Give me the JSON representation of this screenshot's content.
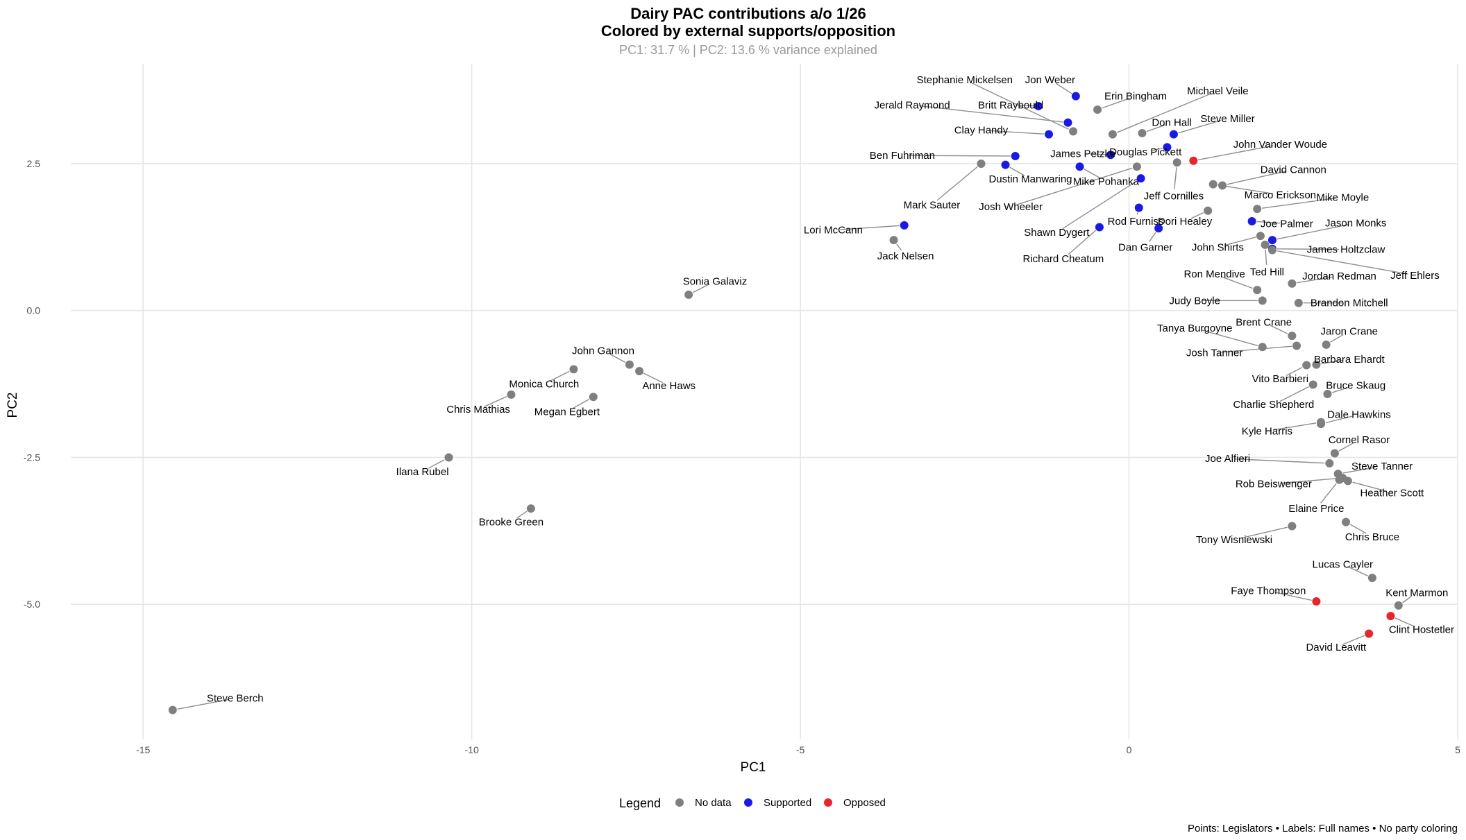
{
  "chart_data": {
    "type": "scatter",
    "title": "Dairy PAC contributions a/o 1/26",
    "subtitle": "Colored by external supports/opposition",
    "variance_note": "PC1: 31.7 % | PC2: 13.6 % variance explained",
    "xlabel": "PC1",
    "ylabel": "PC2",
    "xlim": [
      -16.1,
      5.0
    ],
    "ylim": [
      -7.3,
      4.2
    ],
    "x_ticks": [
      -15,
      -10,
      -5,
      0,
      5
    ],
    "x_tick_labels": [
      "-15",
      "-10",
      "-5",
      "0",
      "5"
    ],
    "y_ticks": [
      -5.0,
      -2.5,
      0.0,
      2.5
    ],
    "y_tick_labels": [
      "-5.0",
      "-2.5",
      "0.0",
      "2.5"
    ],
    "legend": {
      "title": "Legend",
      "placement": "bottom",
      "entries": [
        {
          "key": "none",
          "label": "No data",
          "color": "#7f7f7f"
        },
        {
          "key": "supported",
          "label": "Supported",
          "color": "#1a1ae6"
        },
        {
          "key": "opposed",
          "label": "Opposed",
          "color": "#e6262e"
        }
      ]
    },
    "caption": "Points: Legislators • Labels: Full names • No party coloring",
    "points": [
      {
        "name": "Steve Berch",
        "x": -14.55,
        "y": -6.8,
        "group": "none",
        "lx": -13.6,
        "ly": -6.6
      },
      {
        "name": "Ilana Rubel",
        "x": -10.35,
        "y": -2.5,
        "group": "none",
        "lx": -10.75,
        "ly": -2.74
      },
      {
        "name": "Brooke Green",
        "x": -9.1,
        "y": -3.37,
        "group": "none",
        "lx": -9.4,
        "ly": -3.6
      },
      {
        "name": "Chris Mathias",
        "x": -9.4,
        "y": -1.43,
        "group": "none",
        "lx": -9.9,
        "ly": -1.68
      },
      {
        "name": "Monica Church",
        "x": -8.45,
        "y": -1.0,
        "group": "none",
        "lx": -8.9,
        "ly": -1.25
      },
      {
        "name": "Megan Egbert",
        "x": -8.15,
        "y": -1.47,
        "group": "none",
        "lx": -8.55,
        "ly": -1.72
      },
      {
        "name": "John Gannon",
        "x": -7.6,
        "y": -0.92,
        "group": "none",
        "lx": -8.0,
        "ly": -0.68
      },
      {
        "name": "Anne Haws",
        "x": -7.45,
        "y": -1.03,
        "group": "none",
        "lx": -7.0,
        "ly": -1.28
      },
      {
        "name": "Sonia Galaviz",
        "x": -6.7,
        "y": 0.27,
        "group": "none",
        "lx": -6.3,
        "ly": 0.5
      },
      {
        "name": "Lori McCann",
        "x": -3.42,
        "y": 1.45,
        "group": "supported",
        "lx": -4.5,
        "ly": 1.37
      },
      {
        "name": "Jack Nelsen",
        "x": -3.58,
        "y": 1.2,
        "group": "none",
        "lx": -3.4,
        "ly": 0.93
      },
      {
        "name": "Mark Sauter",
        "x": -2.25,
        "y": 2.5,
        "group": "none",
        "lx": -3.0,
        "ly": 1.8
      },
      {
        "name": "Dustin Manwaring",
        "x": -1.88,
        "y": 2.48,
        "group": "supported",
        "lx": -1.5,
        "ly": 2.24
      },
      {
        "name": "Ben Fuhriman",
        "x": -1.73,
        "y": 2.63,
        "group": "supported",
        "lx": -3.45,
        "ly": 2.64
      },
      {
        "name": "Clay Handy",
        "x": -1.22,
        "y": 3.0,
        "group": "supported",
        "lx": -2.25,
        "ly": 3.07
      },
      {
        "name": "Jerald Raymond",
        "x": -0.93,
        "y": 3.2,
        "group": "supported",
        "lx": -3.3,
        "ly": 3.5
      },
      {
        "name": "Britt Raybould",
        "x": -1.38,
        "y": 3.48,
        "group": "supported",
        "lx": -1.8,
        "ly": 3.5
      },
      {
        "name": "Stephanie Mickelsen",
        "x": -0.85,
        "y": 3.05,
        "group": "none",
        "lx": -2.5,
        "ly": 3.93
      },
      {
        "name": "Jon Weber",
        "x": -0.81,
        "y": 3.65,
        "group": "supported",
        "lx": -1.2,
        "ly": 3.93
      },
      {
        "name": "Erin Bingham",
        "x": -0.48,
        "y": 3.42,
        "group": "none",
        "lx": 0.1,
        "ly": 3.65
      },
      {
        "name": "Michael Veile",
        "x": -0.25,
        "y": 3.0,
        "group": "none",
        "lx": 1.35,
        "ly": 3.74
      },
      {
        "name": "Don Hall",
        "x": 0.2,
        "y": 3.02,
        "group": "none",
        "lx": 0.65,
        "ly": 3.2
      },
      {
        "name": "Steve Miller",
        "x": 0.68,
        "y": 3.0,
        "group": "supported",
        "lx": 1.5,
        "ly": 3.27
      },
      {
        "name": "James Petzke",
        "x": -0.28,
        "y": 2.65,
        "group": "supported",
        "lx": -0.7,
        "ly": 2.67
      },
      {
        "name": "Douglas Pickett",
        "x": 0.58,
        "y": 2.78,
        "group": "supported",
        "lx": 0.25,
        "ly": 2.7
      },
      {
        "name": "John Vander Woude",
        "x": 0.98,
        "y": 2.55,
        "group": "opposed",
        "lx": 2.3,
        "ly": 2.83
      },
      {
        "name": "Mike Pohanka",
        "x": -0.75,
        "y": 2.45,
        "group": "supported",
        "lx": -0.35,
        "ly": 2.2
      },
      {
        "name": "Josh Wheeler",
        "x": 0.12,
        "y": 2.45,
        "group": "none",
        "lx": -1.8,
        "ly": 1.77
      },
      {
        "name": "Jeff Cornilles",
        "x": 0.73,
        "y": 2.52,
        "group": "none",
        "lx": 0.68,
        "ly": 1.95
      },
      {
        "name": "David Cannon",
        "x": 1.42,
        "y": 2.13,
        "group": "none",
        "lx": 2.5,
        "ly": 2.4
      },
      {
        "name": "Marco Erickson",
        "x": 1.28,
        "y": 2.15,
        "group": "none",
        "lx": 2.3,
        "ly": 1.97
      },
      {
        "name": "Shawn Dygert",
        "x": 0.18,
        "y": 2.25,
        "group": "supported",
        "lx": -1.1,
        "ly": 1.33
      },
      {
        "name": "Rod Furniss",
        "x": 0.15,
        "y": 1.75,
        "group": "supported",
        "lx": 0.1,
        "ly": 1.52
      },
      {
        "name": "Richard Cheatum",
        "x": -0.45,
        "y": 1.42,
        "group": "supported",
        "lx": -1.0,
        "ly": 0.88
      },
      {
        "name": "Dori Healey",
        "x": 1.2,
        "y": 1.7,
        "group": "none",
        "lx": 0.85,
        "ly": 1.52
      },
      {
        "name": "Dan Garner",
        "x": 0.45,
        "y": 1.4,
        "group": "supported",
        "lx": 0.25,
        "ly": 1.08
      },
      {
        "name": "Mike Moyle",
        "x": 1.95,
        "y": 1.73,
        "group": "none",
        "lx": 3.25,
        "ly": 1.93
      },
      {
        "name": "Joe Palmer",
        "x": 1.87,
        "y": 1.52,
        "group": "supported",
        "lx": 2.4,
        "ly": 1.48
      },
      {
        "name": "Jason Monks",
        "x": 2.18,
        "y": 1.2,
        "group": "supported",
        "lx": 3.45,
        "ly": 1.49
      },
      {
        "name": "John Shirts",
        "x": 2.0,
        "y": 1.27,
        "group": "none",
        "lx": 1.35,
        "ly": 1.08
      },
      {
        "name": "James Holtzclaw",
        "x": 2.18,
        "y": 1.05,
        "group": "supported",
        "lx": 3.3,
        "ly": 1.04
      },
      {
        "name": "Ted Hill",
        "x": 2.07,
        "y": 1.12,
        "group": "none",
        "lx": 2.1,
        "ly": 0.66
      },
      {
        "name": "Jeff Ehlers",
        "x": 2.18,
        "y": 1.03,
        "group": "none",
        "lx": 4.35,
        "ly": 0.6
      },
      {
        "name": "Jordan Redman",
        "x": 2.48,
        "y": 0.46,
        "group": "none",
        "lx": 3.2,
        "ly": 0.59
      },
      {
        "name": "Ron Mendive",
        "x": 1.95,
        "y": 0.35,
        "group": "none",
        "lx": 1.3,
        "ly": 0.62
      },
      {
        "name": "Judy Boyle",
        "x": 2.03,
        "y": 0.17,
        "group": "none",
        "lx": 1.0,
        "ly": 0.17
      },
      {
        "name": "Brandon Mitchell",
        "x": 2.58,
        "y": 0.13,
        "group": "none",
        "lx": 3.35,
        "ly": 0.13
      },
      {
        "name": "Brent Crane",
        "x": 2.48,
        "y": -0.43,
        "group": "none",
        "lx": 2.05,
        "ly": -0.2
      },
      {
        "name": "Jaron Crane",
        "x": 3.0,
        "y": -0.58,
        "group": "none",
        "lx": 3.35,
        "ly": -0.35
      },
      {
        "name": "Tanya Burgoyne",
        "x": 2.03,
        "y": -0.62,
        "group": "none",
        "lx": 1.0,
        "ly": -0.3
      },
      {
        "name": "Josh Tanner",
        "x": 2.55,
        "y": -0.6,
        "group": "none",
        "lx": 1.3,
        "ly": -0.72
      },
      {
        "name": "Barbara Ehardt",
        "x": 2.85,
        "y": -0.92,
        "group": "none",
        "lx": 3.35,
        "ly": -0.83
      },
      {
        "name": "Vito Barbieri",
        "x": 2.7,
        "y": -0.93,
        "group": "none",
        "lx": 2.3,
        "ly": -1.16
      },
      {
        "name": "Bruce Skaug",
        "x": 3.02,
        "y": -1.42,
        "group": "none",
        "lx": 3.45,
        "ly": -1.27
      },
      {
        "name": "Charlie Shepherd",
        "x": 2.8,
        "y": -1.26,
        "group": "none",
        "lx": 2.2,
        "ly": -1.6
      },
      {
        "name": "Dale Hawkins",
        "x": 2.92,
        "y": -1.93,
        "group": "none",
        "lx": 3.5,
        "ly": -1.77
      },
      {
        "name": "Kyle Harris",
        "x": 2.92,
        "y": -1.9,
        "group": "none",
        "lx": 2.1,
        "ly": -2.05
      },
      {
        "name": "Cornel Rasor",
        "x": 3.13,
        "y": -2.43,
        "group": "none",
        "lx": 3.5,
        "ly": -2.2
      },
      {
        "name": "Joe Alfieri",
        "x": 3.05,
        "y": -2.6,
        "group": "none",
        "lx": 1.5,
        "ly": -2.52
      },
      {
        "name": "Steve Tanner",
        "x": 3.18,
        "y": -2.78,
        "group": "none",
        "lx": 3.85,
        "ly": -2.65
      },
      {
        "name": "Rob Beiswenger",
        "x": 3.25,
        "y": -2.85,
        "group": "none",
        "lx": 2.2,
        "ly": -2.95
      },
      {
        "name": "Heather Scott",
        "x": 3.33,
        "y": -2.9,
        "group": "none",
        "lx": 4.0,
        "ly": -3.1
      },
      {
        "name": "Elaine Price",
        "x": 3.2,
        "y": -2.88,
        "group": "none",
        "lx": 2.85,
        "ly": -3.37
      },
      {
        "name": "Chris Bruce",
        "x": 3.3,
        "y": -3.6,
        "group": "none",
        "lx": 3.7,
        "ly": -3.85
      },
      {
        "name": "Tony Wisniewski",
        "x": 2.48,
        "y": -3.67,
        "group": "none",
        "lx": 1.6,
        "ly": -3.9
      },
      {
        "name": "Lucas Cayler",
        "x": 3.7,
        "y": -4.55,
        "group": "none",
        "lx": 3.25,
        "ly": -4.32
      },
      {
        "name": "Faye Thompson",
        "x": 2.85,
        "y": -4.95,
        "group": "opposed",
        "lx": 2.12,
        "ly": -4.77
      },
      {
        "name": "Kent Marmon",
        "x": 4.1,
        "y": -5.02,
        "group": "none",
        "lx": 4.38,
        "ly": -4.8
      },
      {
        "name": "Clint Hostetler",
        "x": 3.98,
        "y": -5.2,
        "group": "opposed",
        "lx": 4.45,
        "ly": -5.43
      },
      {
        "name": "David Leavitt",
        "x": 3.65,
        "y": -5.5,
        "group": "opposed",
        "lx": 3.15,
        "ly": -5.73
      }
    ]
  }
}
